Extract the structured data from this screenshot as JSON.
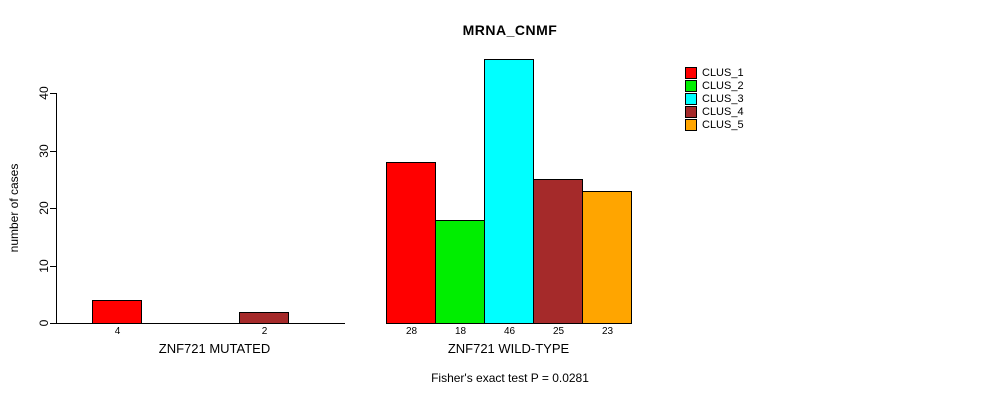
{
  "title": "MRNA_CNMF",
  "ylabel": "number of cases",
  "footer": "Fisher's exact test P = 0.0281",
  "chart_data": {
    "type": "bar",
    "title": "MRNA_CNMF",
    "xlabel": "",
    "ylabel": "number of cases",
    "ylim": [
      0,
      46
    ],
    "yticks": [
      0,
      10,
      20,
      30,
      40
    ],
    "grid": false,
    "legend_position": "right",
    "categories": [
      "ZNF721 MUTATED",
      "ZNF721 WILD-TYPE"
    ],
    "series": [
      {
        "name": "CLUS_1",
        "color": "#FF0000",
        "values": [
          4,
          28
        ]
      },
      {
        "name": "CLUS_2",
        "color": "#00EE00",
        "values": [
          0,
          18
        ]
      },
      {
        "name": "CLUS_3",
        "color": "#00FFFF",
        "values": [
          0,
          46
        ]
      },
      {
        "name": "CLUS_4",
        "color": "#A52A2A",
        "values": [
          2,
          25
        ]
      },
      {
        "name": "CLUS_5",
        "color": "#FFA500",
        "values": [
          0,
          23
        ]
      }
    ],
    "bar_value_labels": {
      "shown_only_if_positive": true
    },
    "annotation": "Fisher's exact test P = 0.0281"
  },
  "legend": {
    "items": [
      {
        "label": "CLUS_1",
        "color": "#FF0000"
      },
      {
        "label": "CLUS_2",
        "color": "#00EE00"
      },
      {
        "label": "CLUS_3",
        "color": "#00FFFF"
      },
      {
        "label": "CLUS_4",
        "color": "#A52A2A"
      },
      {
        "label": "CLUS_5",
        "color": "#FFA500"
      }
    ]
  }
}
